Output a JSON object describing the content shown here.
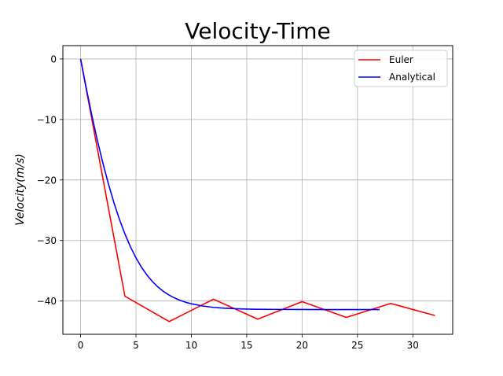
{
  "chart_data": {
    "type": "line",
    "title": "Velocity-Time",
    "xlabel": "",
    "ylabel": "Velocity(m/s)",
    "xlim": [
      -1.6,
      33.6
    ],
    "ylim": [
      -45.5,
      2.2
    ],
    "xticks": [
      0,
      5,
      10,
      15,
      20,
      25,
      30
    ],
    "yticks": [
      0,
      -10,
      -20,
      -30,
      -40
    ],
    "xtick_labels": [
      "0",
      "5",
      "10",
      "15",
      "20",
      "25",
      "30"
    ],
    "ytick_labels": [
      "0",
      "−10",
      "−20",
      "−30",
      "−40"
    ],
    "grid": true,
    "legend_position": "top-right",
    "series": [
      {
        "name": "Euler",
        "color": "#ff0000",
        "x": [
          0,
          4,
          8,
          12,
          16,
          20,
          24,
          28,
          32
        ],
        "y": [
          0,
          -39.2,
          -43.4,
          -39.7,
          -43.0,
          -40.1,
          -42.7,
          -40.4,
          -42.4
        ]
      },
      {
        "name": "Analytical",
        "color": "#0000ff",
        "x": [
          0,
          0.5,
          1,
          1.5,
          2,
          2.5,
          3,
          3.5,
          4,
          4.5,
          5,
          5.5,
          6,
          6.5,
          7,
          7.5,
          8,
          8.5,
          9,
          9.5,
          10,
          11,
          12,
          13,
          14,
          15,
          16,
          18,
          20,
          22,
          24,
          26,
          27
        ],
        "y": [
          0,
          -4.73,
          -9.19,
          -13.33,
          -17.11,
          -20.56,
          -23.69,
          -26.46,
          -28.9,
          -31.03,
          -32.87,
          -34.42,
          -35.73,
          -36.81,
          -37.71,
          -38.44,
          -39.03,
          -39.51,
          -39.9,
          -40.21,
          -40.46,
          -40.82,
          -41.05,
          -41.19,
          -41.27,
          -41.33,
          -41.36,
          -41.39,
          -41.4,
          -41.41,
          -41.41,
          -41.41,
          -41.41
        ]
      }
    ]
  }
}
